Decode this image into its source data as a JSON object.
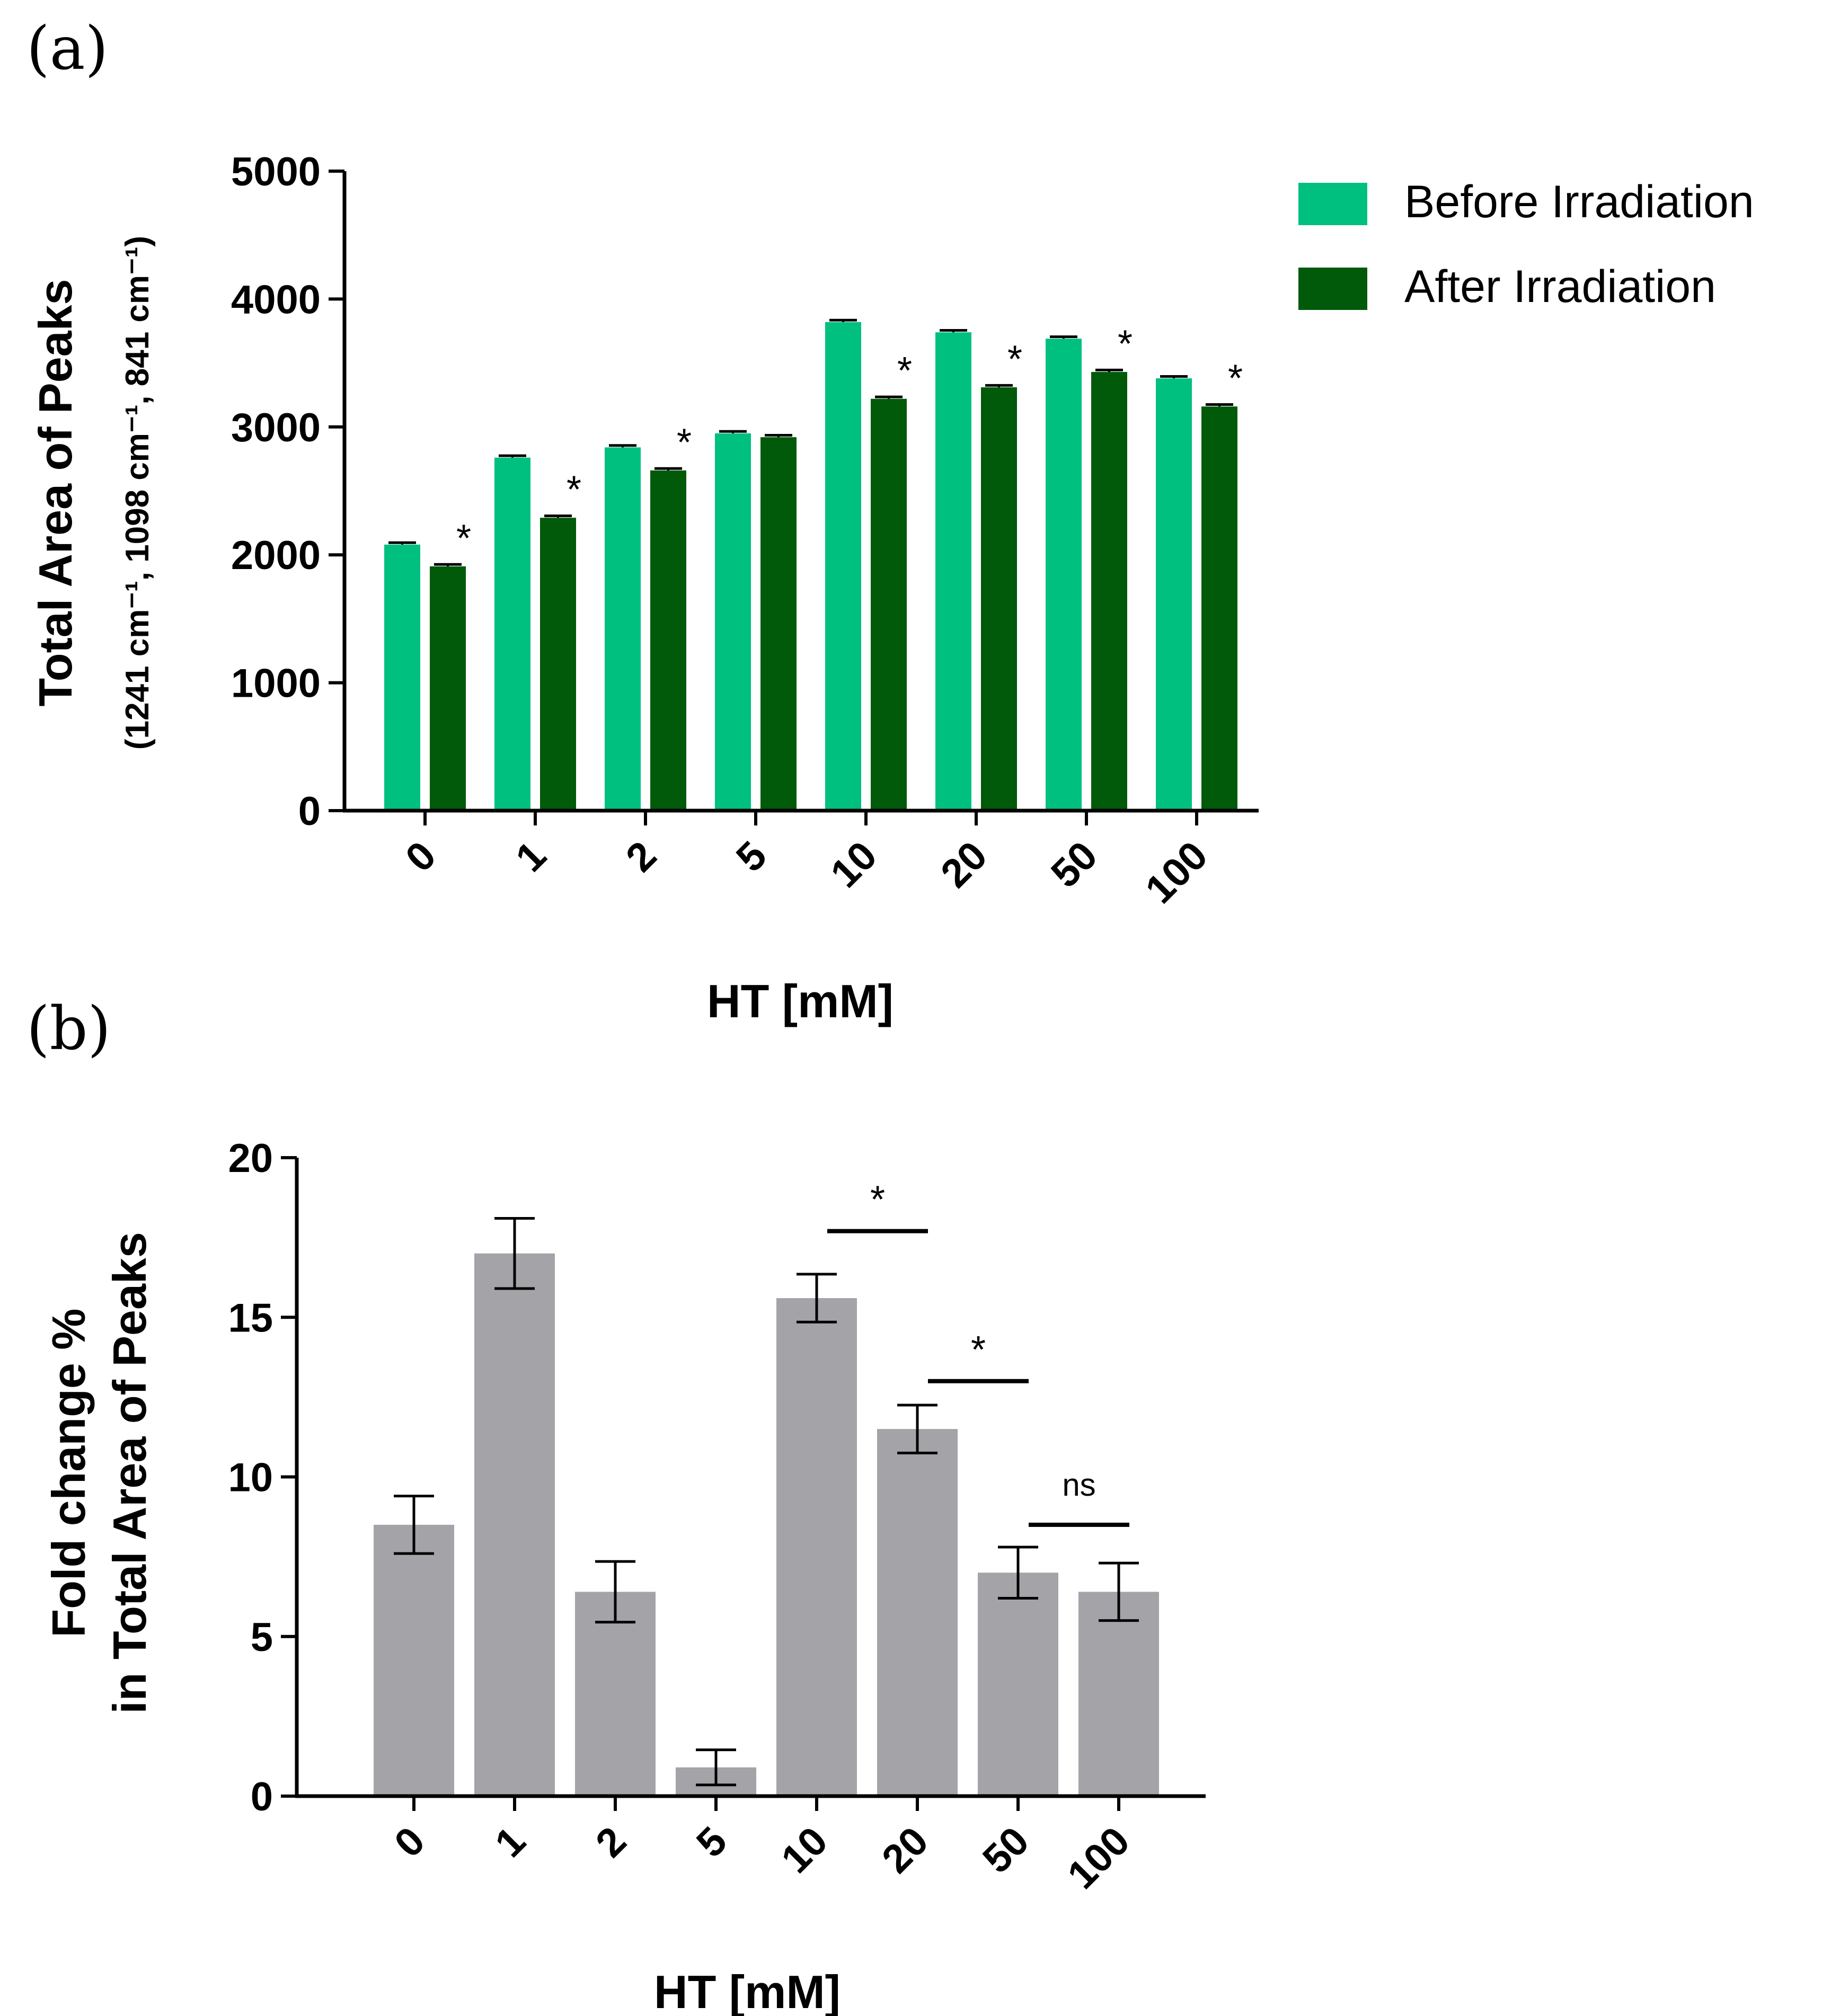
{
  "chart_data": [
    {
      "id": "a",
      "type": "bar",
      "panel_label": "(a)",
      "categories": [
        "0",
        "1",
        "2",
        "5",
        "10",
        "20",
        "50",
        "100"
      ],
      "series": [
        {
          "name": "Before Irradiation",
          "color": "#00c07f",
          "values": [
            2080,
            2760,
            2840,
            2950,
            3820,
            3740,
            3690,
            3380
          ],
          "errors": [
            15,
            15,
            15,
            15,
            15,
            15,
            15,
            15
          ]
        },
        {
          "name": "After Irradiation",
          "color": "#005a0a",
          "values": [
            1910,
            2290,
            2660,
            2920,
            3220,
            3310,
            3430,
            3160
          ],
          "errors": [
            15,
            15,
            15,
            15,
            15,
            15,
            15,
            15
          ]
        }
      ],
      "significance": [
        "*",
        "*",
        "*",
        "",
        "*",
        "*",
        "*",
        "*"
      ],
      "ylim": [
        0,
        5000
      ],
      "yticks": [
        "0",
        "1000",
        "2000",
        "3000",
        "4000",
        "5000"
      ],
      "ylabel": "Total Area of Peaks",
      "ylabel_sub": "(1241 cm⁻¹, 1098 cm⁻¹, 841 cm⁻¹)",
      "xlabel": "HT [mM]",
      "legend_position": "top-right"
    },
    {
      "id": "b",
      "type": "bar",
      "panel_label": "(b)",
      "categories": [
        "0",
        "1",
        "2",
        "5",
        "10",
        "20",
        "50",
        "100"
      ],
      "series": [
        {
          "name": "Fold change",
          "color": "#a3a3a8",
          "values": [
            8.5,
            17.0,
            6.4,
            0.9,
            15.6,
            11.5,
            7.0,
            6.4
          ],
          "errors": [
            0.9,
            1.1,
            0.95,
            0.55,
            0.75,
            0.75,
            0.8,
            0.9
          ]
        }
      ],
      "comparisons": [
        {
          "from": "10",
          "to": "20",
          "label": "*",
          "y": 17.7
        },
        {
          "from": "20",
          "to": "50",
          "label": "*",
          "y": 13.0
        },
        {
          "from": "50",
          "to": "100",
          "label": "ns",
          "y": 8.5
        }
      ],
      "ylim": [
        0,
        20
      ],
      "yticks": [
        "0",
        "5",
        "10",
        "15",
        "20"
      ],
      "ylabel_line1": "Fold change %",
      "ylabel_line2": "in Total Area of Peaks",
      "xlabel": "HT [mM]"
    }
  ]
}
